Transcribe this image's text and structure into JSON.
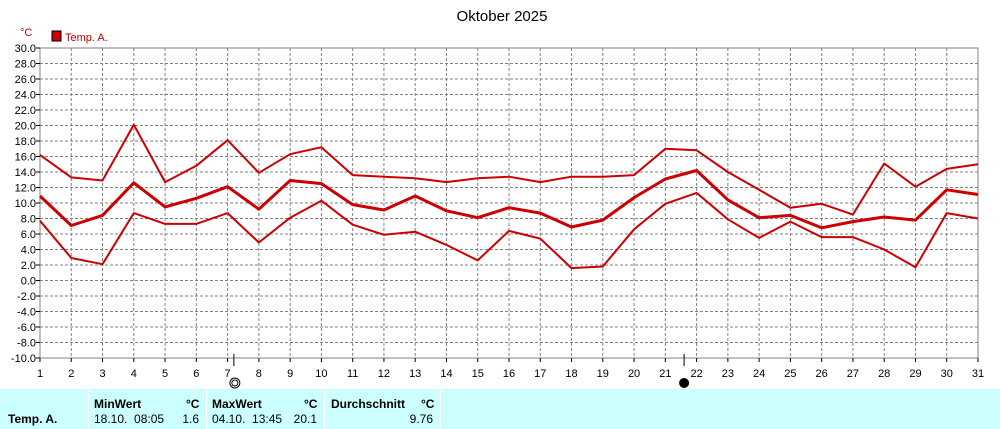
{
  "chart_data": {
    "type": "line",
    "title": "Oktober 2025",
    "y_unit": "°C",
    "legend": [
      {
        "name": "Temp. A.",
        "color": "#cc0000"
      }
    ],
    "legend_placement": "top-left",
    "grid": true,
    "xlim": [
      1,
      31
    ],
    "ylim": [
      -10,
      30
    ],
    "x": [
      1,
      2,
      3,
      4,
      5,
      6,
      7,
      8,
      9,
      10,
      11,
      12,
      13,
      14,
      15,
      16,
      17,
      18,
      19,
      20,
      21,
      22,
      23,
      24,
      25,
      26,
      27,
      28,
      29,
      30,
      31
    ],
    "x_tick_labels": [
      "1",
      "2",
      "3",
      "4",
      "5",
      "6",
      "7",
      "8",
      "9",
      "10",
      "11",
      "12",
      "13",
      "14",
      "15",
      "16",
      "17",
      "18",
      "19",
      "20",
      "21",
      "22",
      "23",
      "24",
      "25",
      "26",
      "27",
      "28",
      "29",
      "30",
      "31"
    ],
    "y_tick_labels": [
      "30.0",
      "28.0",
      "26.0",
      "24.0",
      "22.0",
      "20.0",
      "18.0",
      "16.0",
      "14.0",
      "12.0",
      "10.0",
      "8.0",
      "6.0",
      "4.0",
      "2.0",
      "0.0",
      "-2.0",
      "-4.0",
      "-6.0",
      "-8.0",
      "-10.0"
    ],
    "series": [
      {
        "role": "max",
        "values": [
          16.2,
          13.3,
          12.9,
          20.1,
          12.7,
          14.8,
          18.1,
          13.9,
          16.3,
          17.2,
          13.6,
          13.4,
          13.2,
          12.7,
          13.2,
          13.4,
          12.7,
          13.4,
          13.4,
          13.6,
          17.0,
          16.8,
          14.0,
          11.7,
          9.4,
          9.9,
          8.5,
          15.1,
          12.1,
          14.4,
          15.0
        ]
      },
      {
        "role": "avg",
        "values": [
          10.9,
          7.1,
          8.4,
          12.6,
          9.5,
          10.6,
          12.1,
          9.2,
          12.9,
          12.5,
          9.8,
          9.1,
          10.9,
          9.0,
          8.1,
          9.4,
          8.7,
          6.9,
          7.8,
          10.7,
          13.1,
          14.2,
          10.4,
          8.1,
          8.4,
          6.8,
          7.6,
          8.2,
          7.8,
          11.7,
          11.1
        ]
      },
      {
        "role": "min",
        "values": [
          7.7,
          2.9,
          2.1,
          8.7,
          7.3,
          7.3,
          8.7,
          4.9,
          8.1,
          10.3,
          7.2,
          5.9,
          6.3,
          4.6,
          2.6,
          6.4,
          5.4,
          1.6,
          1.8,
          6.6,
          9.9,
          11.3,
          7.9,
          5.5,
          7.6,
          5.6,
          5.6,
          4.0,
          1.7,
          8.7,
          8.0
        ]
      }
    ],
    "markers": [
      {
        "x": 7.2,
        "symbol": "open-circle"
      },
      {
        "x": 21.6,
        "symbol": "filled-circle"
      }
    ]
  },
  "stats": {
    "row_label": "Temp. A.",
    "min": {
      "label": "MinWert",
      "unit": "°C",
      "datetime": "18.10.  08:05",
      "value": "1.6"
    },
    "max": {
      "label": "MaxWert",
      "unit": "°C",
      "datetime": "04.10.  13:45",
      "value": "20.1"
    },
    "avg": {
      "label": "Durchschnitt",
      "unit": "°C",
      "value": "9.76"
    }
  },
  "colors": {
    "line": "#cc0000",
    "stats_bg": "#ccffff",
    "grid": "#808080"
  }
}
